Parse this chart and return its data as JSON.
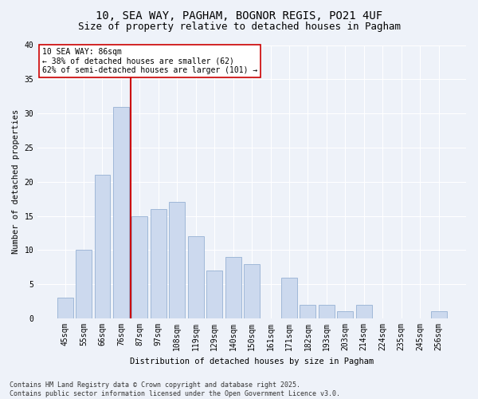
{
  "title1": "10, SEA WAY, PAGHAM, BOGNOR REGIS, PO21 4UF",
  "title2": "Size of property relative to detached houses in Pagham",
  "xlabel": "Distribution of detached houses by size in Pagham",
  "ylabel": "Number of detached properties",
  "categories": [
    "45sqm",
    "55sqm",
    "66sqm",
    "76sqm",
    "87sqm",
    "97sqm",
    "108sqm",
    "119sqm",
    "129sqm",
    "140sqm",
    "150sqm",
    "161sqm",
    "171sqm",
    "182sqm",
    "193sqm",
    "203sqm",
    "214sqm",
    "224sqm",
    "235sqm",
    "245sqm",
    "256sqm"
  ],
  "values": [
    3,
    10,
    21,
    31,
    15,
    16,
    17,
    12,
    7,
    9,
    8,
    0,
    6,
    2,
    2,
    1,
    2,
    0,
    0,
    0,
    1
  ],
  "bar_color": "#ccd9ee",
  "bar_edge_color": "#a0b8d8",
  "vline_x_index": 3.5,
  "vline_color": "#cc0000",
  "annotation_text": "10 SEA WAY: 86sqm\n← 38% of detached houses are smaller (62)\n62% of semi-detached houses are larger (101) →",
  "annotation_box_color": "#ffffff",
  "annotation_box_edge": "#cc0000",
  "footer": "Contains HM Land Registry data © Crown copyright and database right 2025.\nContains public sector information licensed under the Open Government Licence v3.0.",
  "ylim": [
    0,
    40
  ],
  "yticks": [
    0,
    5,
    10,
    15,
    20,
    25,
    30,
    35,
    40
  ],
  "background_color": "#eef2f9",
  "plot_bg_color": "#eef2f9",
  "grid_color": "#ffffff",
  "title1_fontsize": 10,
  "title2_fontsize": 9,
  "axis_fontsize": 7.5,
  "tick_fontsize": 7,
  "footer_fontsize": 6
}
